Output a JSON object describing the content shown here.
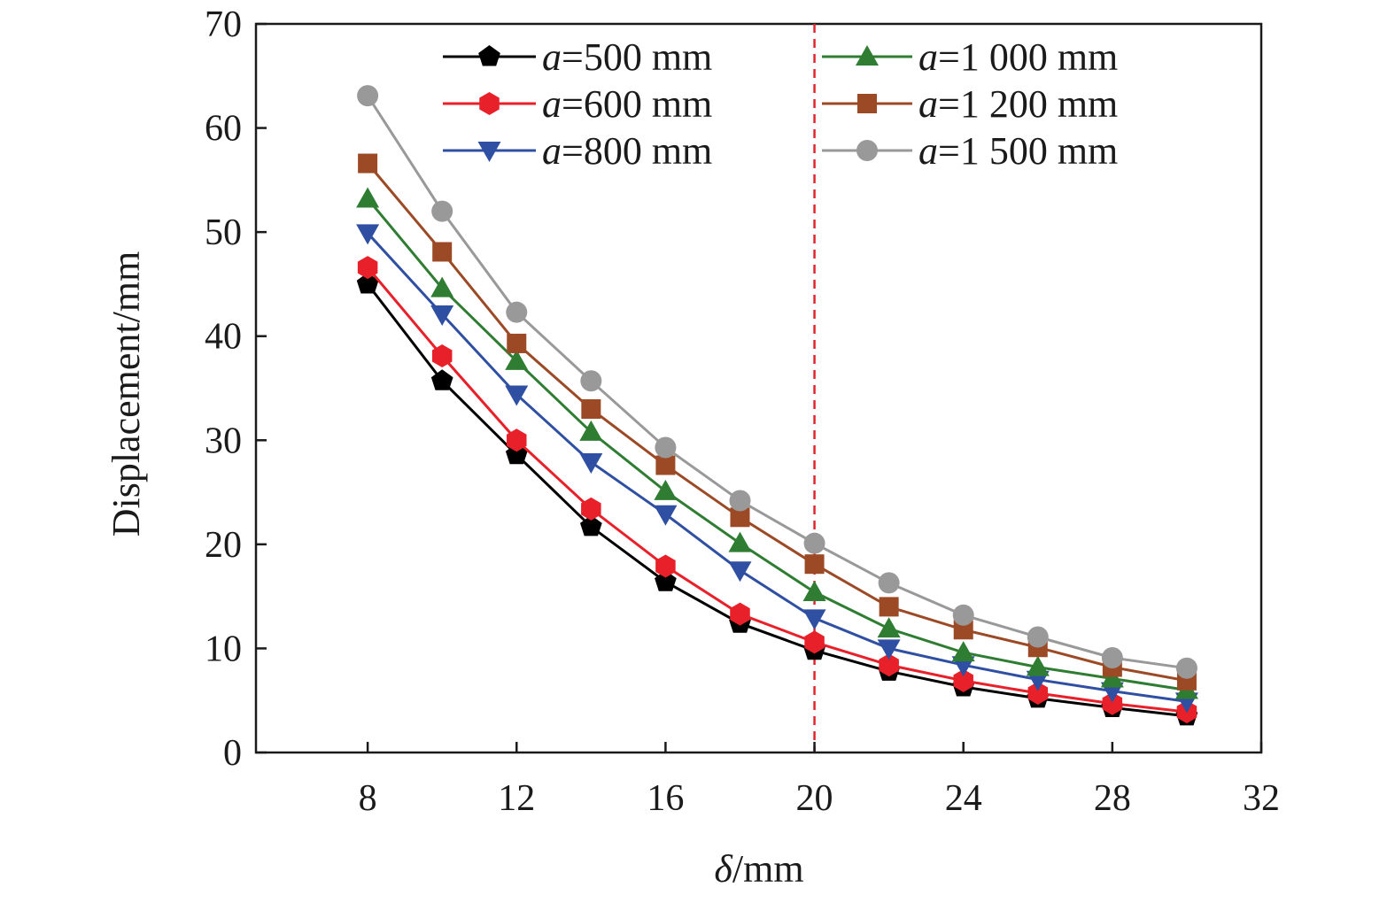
{
  "chart_data": {
    "type": "line",
    "title": "",
    "xlabel": {
      "symbol": "δ",
      "unit": "/mm"
    },
    "ylabel": "Displacement/mm",
    "xlim": [
      5,
      32
    ],
    "ylim": [
      0,
      70
    ],
    "xticks": [
      8,
      12,
      16,
      20,
      24,
      28,
      32
    ],
    "yticks": [
      0,
      10,
      20,
      30,
      40,
      50,
      60,
      70
    ],
    "grid": false,
    "legend_position": "top",
    "reference_line": {
      "x": 20,
      "color": "#e0262b",
      "style": "dashed"
    },
    "x": [
      8,
      10,
      12,
      14,
      16,
      18,
      20,
      22,
      24,
      26,
      28,
      30
    ],
    "series": [
      {
        "name": "a=500 mm",
        "prefix": "a",
        "suffix": "=500 mm",
        "color": "#000000",
        "marker": "pentagon",
        "values": [
          45.0,
          35.7,
          28.6,
          21.7,
          16.4,
          12.4,
          9.8,
          7.8,
          6.3,
          5.2,
          4.3,
          3.5
        ]
      },
      {
        "name": "a=600 mm",
        "prefix": "a",
        "suffix": "=600 mm",
        "color": "#e8202a",
        "marker": "hexagon",
        "values": [
          46.6,
          38.1,
          30.0,
          23.4,
          17.9,
          13.3,
          10.6,
          8.4,
          6.9,
          5.7,
          4.7,
          3.9
        ]
      },
      {
        "name": "a=800 mm",
        "prefix": "a",
        "suffix": "=800 mm",
        "color": "#2f4fa2",
        "marker": "triangle-down",
        "values": [
          49.9,
          42.1,
          34.4,
          27.9,
          22.9,
          17.5,
          12.9,
          10.0,
          8.4,
          7.0,
          5.9,
          4.9
        ]
      },
      {
        "name": "a=1 000 mm",
        "prefix": "a",
        "suffix": "=1 000 mm",
        "color": "#2e7d32",
        "marker": "triangle-up",
        "values": [
          53.2,
          44.6,
          37.6,
          30.8,
          25.1,
          20.1,
          15.4,
          11.9,
          9.6,
          8.2,
          7.1,
          6.0
        ]
      },
      {
        "name": "a=1 200 mm",
        "prefix": "a",
        "suffix": "=1 200 mm",
        "color": "#9c4a26",
        "marker": "square",
        "values": [
          56.6,
          48.1,
          39.3,
          33.0,
          27.6,
          22.6,
          18.1,
          14.0,
          11.8,
          10.1,
          8.2,
          6.9
        ]
      },
      {
        "name": "a=1 500 mm",
        "prefix": "a",
        "suffix": "=1 500 mm",
        "color": "#999999",
        "marker": "circle",
        "values": [
          63.1,
          52.0,
          42.3,
          35.7,
          29.3,
          24.2,
          20.1,
          16.3,
          13.2,
          11.1,
          9.1,
          8.1
        ]
      }
    ]
  }
}
